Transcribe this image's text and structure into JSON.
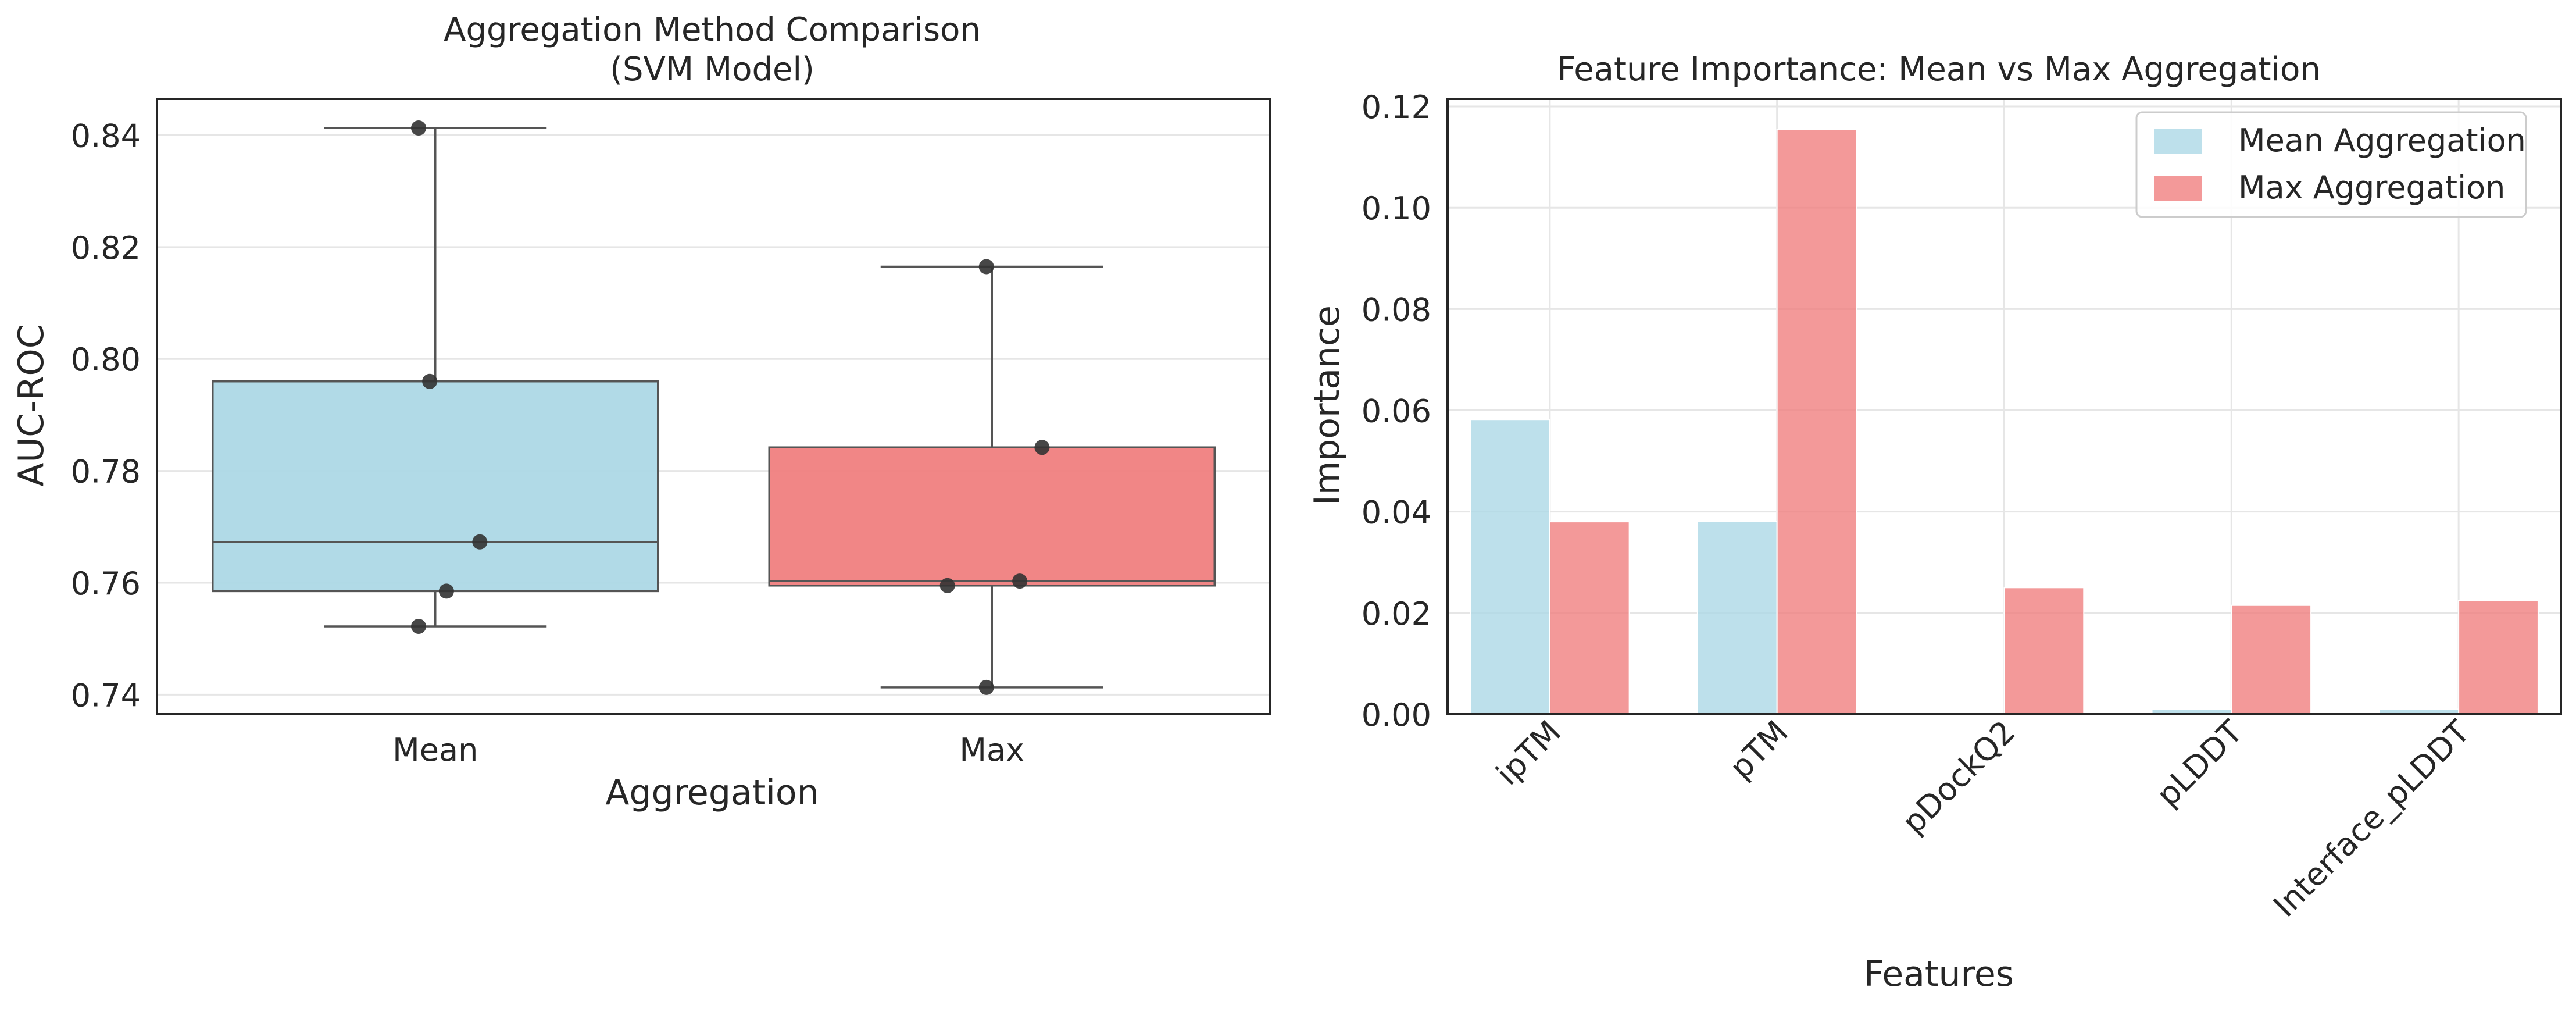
{
  "chart_data": [
    {
      "type": "box",
      "title_line1": "Aggregation Method Comparison",
      "title_line2": "(SVM Model)",
      "xlabel": "Aggregation",
      "ylabel": "AUC-ROC",
      "categories": [
        "Mean",
        "Max"
      ],
      "ylim": [
        0.7365,
        0.8465
      ],
      "yticks": [
        0.74,
        0.76,
        0.78,
        0.8,
        0.82,
        0.84
      ],
      "ytick_labels": [
        "0.74",
        "0.76",
        "0.78",
        "0.80",
        "0.82",
        "0.84"
      ],
      "grid": true,
      "boxes": [
        {
          "name": "Mean",
          "color": "#add8e6",
          "whisker_low": 0.7522,
          "q1": 0.7585,
          "median": 0.7673,
          "q3": 0.796,
          "whisker_high": 0.8413
        },
        {
          "name": "Max",
          "color": "#f08080",
          "whisker_low": 0.7413,
          "q1": 0.7595,
          "median": 0.7603,
          "q3": 0.7842,
          "whisker_high": 0.8165
        }
      ],
      "points": [
        {
          "category": "Mean",
          "values": [
            0.8413,
            0.796,
            0.7673,
            0.7585,
            0.7522
          ]
        },
        {
          "category": "Max",
          "values": [
            0.8165,
            0.7842,
            0.7603,
            0.7595,
            0.7413
          ]
        }
      ]
    },
    {
      "type": "bar",
      "title": "Feature Importance: Mean vs Max Aggregation",
      "xlabel": "Features",
      "ylabel": "Importance",
      "categories": [
        "ipTM",
        "pTM",
        "pDockQ2",
        "pLDDT",
        "Interface_pLDDT"
      ],
      "ylim": [
        0,
        0.1215
      ],
      "yticks": [
        0.0,
        0.02,
        0.04,
        0.06,
        0.08,
        0.1,
        0.12
      ],
      "ytick_labels": [
        "0.00",
        "0.02",
        "0.04",
        "0.06",
        "0.08",
        "0.10",
        "0.12"
      ],
      "grid": true,
      "legend_position": "top-right",
      "series": [
        {
          "name": "Mean Aggregation",
          "color": "#add8e6",
          "values": [
            0.0582,
            0.0381,
            0.0,
            0.001,
            0.001
          ]
        },
        {
          "name": "Max Aggregation",
          "color": "#f08080",
          "values": [
            0.038,
            0.1155,
            0.025,
            0.0215,
            0.0225
          ]
        }
      ]
    }
  ]
}
